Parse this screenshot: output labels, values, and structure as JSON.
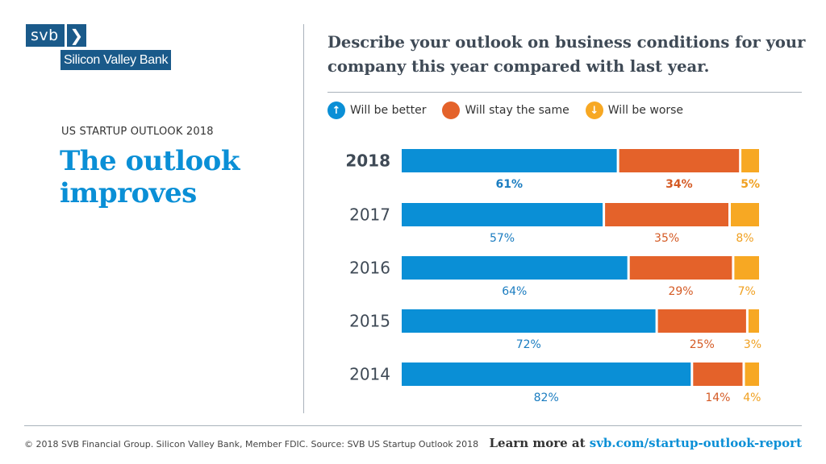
{
  "logo": {
    "short": "svb",
    "chevron": "❯",
    "name": "Silicon Valley Bank"
  },
  "kicker": "US STARTUP OUTLOOK 2018",
  "headline": "The outlook improves",
  "question": "Describe your outlook on business conditions for your company this year compared with last year.",
  "colors": {
    "better": "#0a8fd6",
    "same": "#e4622a",
    "worse": "#f7a823",
    "brand": "#1a5a8a"
  },
  "legend": [
    {
      "label": "Will be better",
      "icon": "arrow-up-icon",
      "glyph": "↑",
      "color": "#0a8fd6"
    },
    {
      "label": "Will stay the same",
      "icon": "circle-icon",
      "glyph": "",
      "color": "#e4622a"
    },
    {
      "label": "Will be worse",
      "icon": "arrow-down-icon",
      "glyph": "↓",
      "color": "#f7a823"
    }
  ],
  "chart_data": {
    "type": "bar",
    "orientation": "horizontal",
    "stacked": true,
    "title": "Describe your outlook on business conditions for your company this year compared with last year.",
    "categories": [
      "2018",
      "2017",
      "2016",
      "2015",
      "2014"
    ],
    "series": [
      {
        "name": "Will be better",
        "values": [
          61,
          57,
          64,
          72,
          82
        ],
        "color": "#0a8fd6"
      },
      {
        "name": "Will stay the same",
        "values": [
          34,
          35,
          29,
          25,
          14
        ],
        "color": "#e4622a"
      },
      {
        "name": "Will be worse",
        "values": [
          5,
          8,
          7,
          3,
          4
        ],
        "color": "#f7a823"
      }
    ],
    "unit": "%",
    "xlabel": "",
    "ylabel": "",
    "legend_position": "top",
    "grid": false
  },
  "footer": {
    "copyright": "© 2018 SVB Financial Group. Silicon Valley Bank, Member FDIC.  Source: SVB US Startup Outlook 2018",
    "cta": "Learn more at ",
    "link": "svb.com/startup-outlook-report"
  }
}
